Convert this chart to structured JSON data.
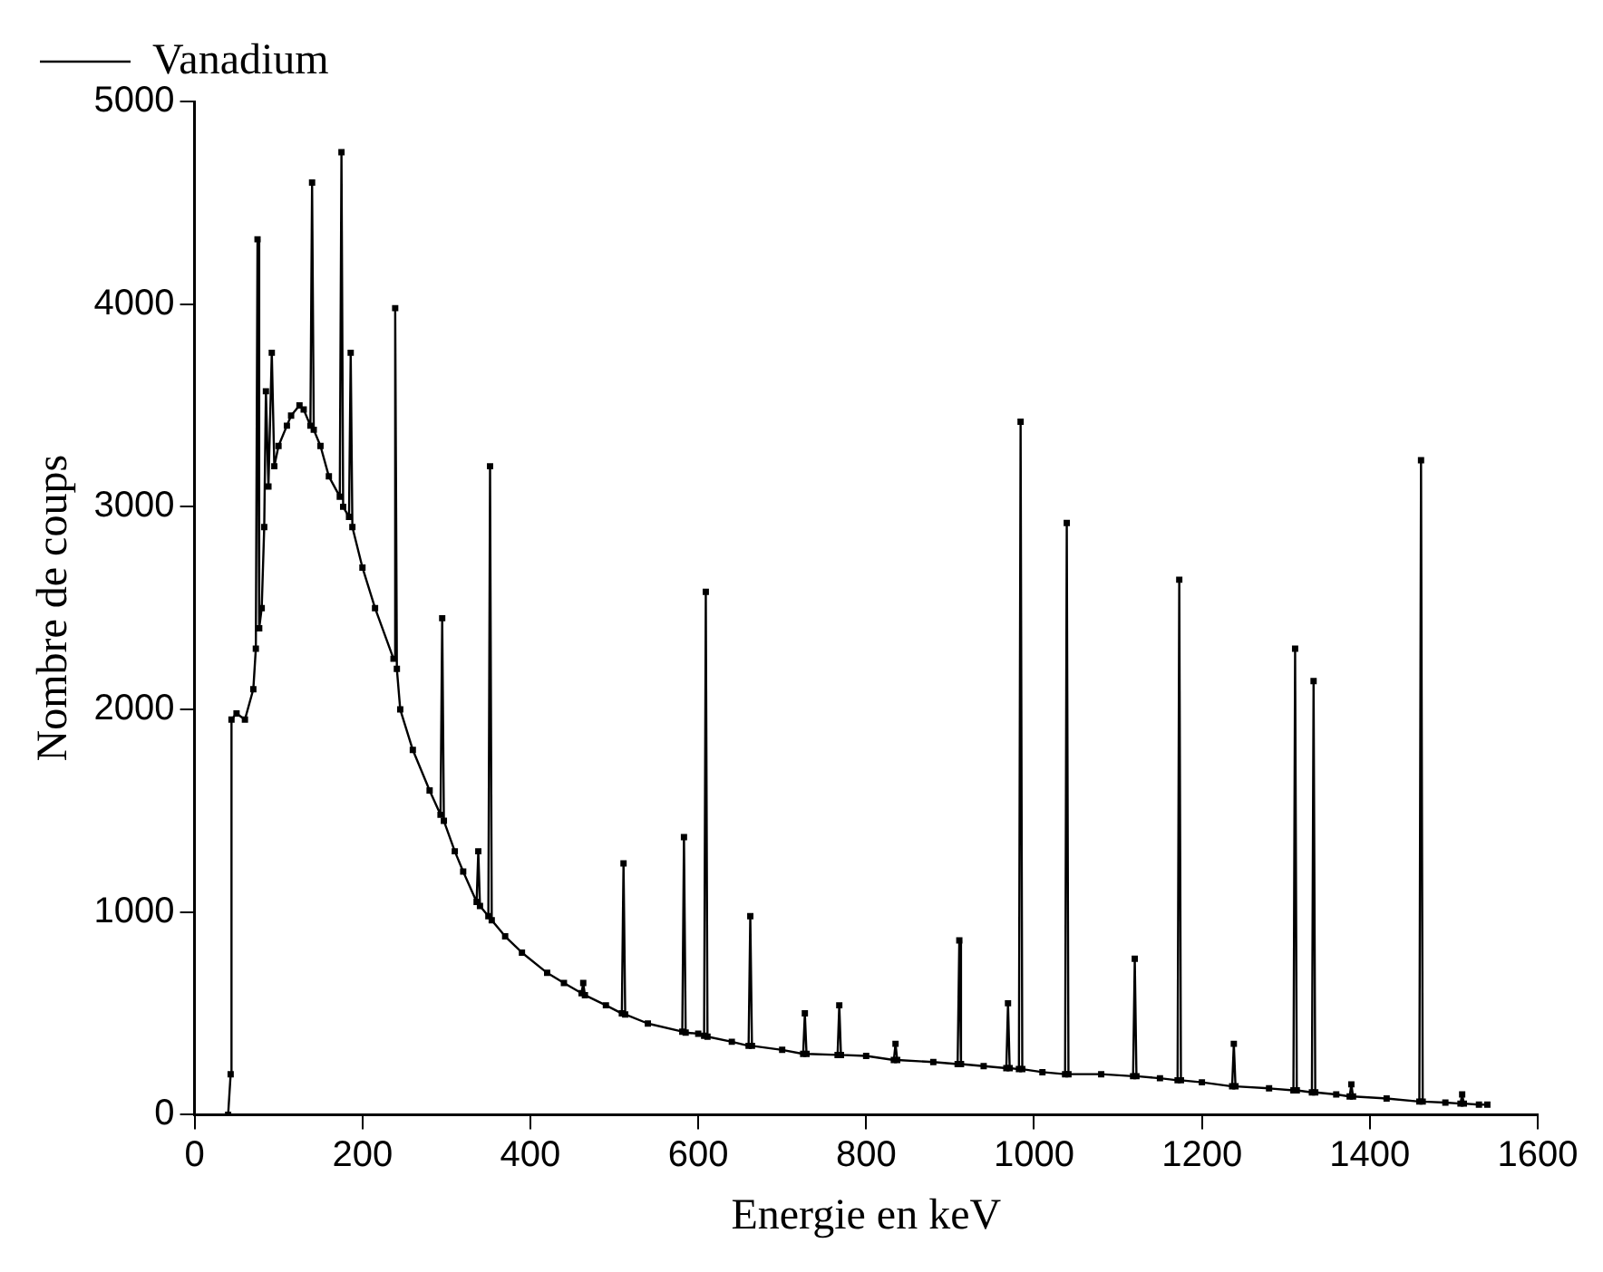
{
  "chart_data": {
    "type": "line",
    "xlabel": "Energie en keV",
    "ylabel": "Nombre de coups",
    "xlim": [
      0,
      1600
    ],
    "xticks": [
      0,
      200,
      400,
      600,
      800,
      1000,
      1200,
      1400,
      1600
    ],
    "ylim": [
      0,
      5000
    ],
    "yticks": [
      0,
      1000,
      2000,
      3000,
      4000,
      5000
    ],
    "grid": false,
    "legend": "top left",
    "marker": "square",
    "line_style": "solid",
    "series": [
      {
        "name": "Vanadium",
        "color": "#000000",
        "x": [
          40,
          43,
          44,
          50,
          60,
          70,
          73,
          75,
          77,
          80,
          83,
          85,
          88,
          92,
          95,
          100,
          110,
          115,
          125,
          130,
          138,
          140,
          142,
          150,
          160,
          173,
          175,
          177,
          184,
          186,
          188,
          200,
          215,
          237,
          239,
          241,
          245,
          260,
          280,
          293,
          295,
          297,
          310,
          320,
          336,
          338,
          340,
          350,
          352,
          354,
          370,
          390,
          420,
          440,
          461,
          463,
          465,
          490,
          509,
          511,
          513,
          540,
          581,
          583,
          585,
          600,
          607,
          609,
          611,
          640,
          660,
          662,
          664,
          700,
          725,
          727,
          729,
          766,
          768,
          770,
          800,
          833,
          835,
          837,
          880,
          909,
          911,
          913,
          940,
          967,
          969,
          971,
          982,
          984,
          986,
          1010,
          1037,
          1039,
          1041,
          1080,
          1118,
          1120,
          1122,
          1150,
          1171,
          1173,
          1175,
          1200,
          1236,
          1238,
          1240,
          1280,
          1309,
          1311,
          1313,
          1331,
          1333,
          1335,
          1360,
          1376,
          1378,
          1380,
          1420,
          1459,
          1461,
          1463,
          1490,
          1508,
          1510,
          1512,
          1530,
          1540
        ],
        "values": [
          0,
          200,
          1950,
          1980,
          1950,
          2100,
          2300,
          4320,
          2400,
          2500,
          2900,
          3570,
          3100,
          3760,
          3200,
          3300,
          3400,
          3450,
          3500,
          3480,
          3400,
          4600,
          3380,
          3300,
          3150,
          3050,
          4750,
          3000,
          2950,
          3760,
          2900,
          2700,
          2500,
          2250,
          3980,
          2200,
          2000,
          1800,
          1600,
          1480,
          2450,
          1450,
          1300,
          1200,
          1050,
          1300,
          1030,
          980,
          3200,
          960,
          880,
          800,
          700,
          650,
          600,
          650,
          590,
          540,
          500,
          1240,
          495,
          450,
          410,
          1370,
          405,
          400,
          390,
          2580,
          385,
          360,
          340,
          980,
          340,
          320,
          300,
          500,
          300,
          295,
          540,
          295,
          290,
          270,
          350,
          270,
          260,
          250,
          860,
          250,
          240,
          230,
          550,
          230,
          225,
          3420,
          225,
          210,
          200,
          2920,
          200,
          200,
          190,
          770,
          190,
          180,
          170,
          2640,
          170,
          160,
          140,
          350,
          140,
          130,
          120,
          2300,
          120,
          110,
          2140,
          110,
          100,
          90,
          150,
          90,
          80,
          65,
          3230,
          65,
          60,
          55,
          100,
          55,
          50,
          50
        ]
      }
    ]
  }
}
